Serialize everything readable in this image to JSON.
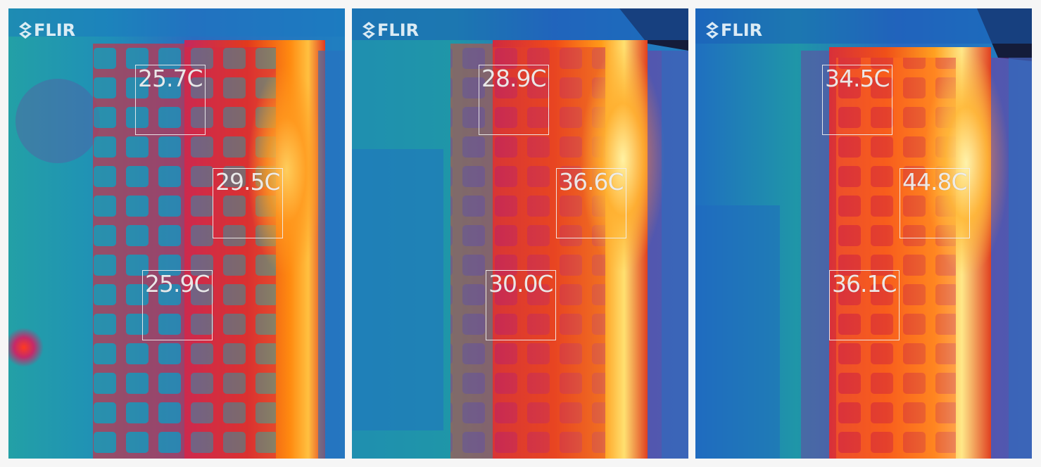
{
  "brand": "FLIR",
  "icons": {
    "logo": "flir-logo-icon"
  },
  "colors": {
    "cold": "#1a5fb8",
    "cool": "#1f9aa8",
    "mid": "#b3286e",
    "warm": "#e8331e",
    "hot": "#ff8a10",
    "hottest": "#fff08a",
    "box": "#f0f0f0"
  },
  "panels": [
    {
      "logo": "FLIR",
      "spots": [
        {
          "temp": "25.7C"
        },
        {
          "temp": "29.5C"
        },
        {
          "temp": "25.9C"
        }
      ]
    },
    {
      "logo": "FLIR",
      "spots": [
        {
          "temp": "28.9C"
        },
        {
          "temp": "36.6C"
        },
        {
          "temp": "30.0C"
        }
      ]
    },
    {
      "logo": "FLIR",
      "spots": [
        {
          "temp": "34.5C"
        },
        {
          "temp": "44.8C"
        },
        {
          "temp": "36.1C"
        }
      ]
    }
  ]
}
